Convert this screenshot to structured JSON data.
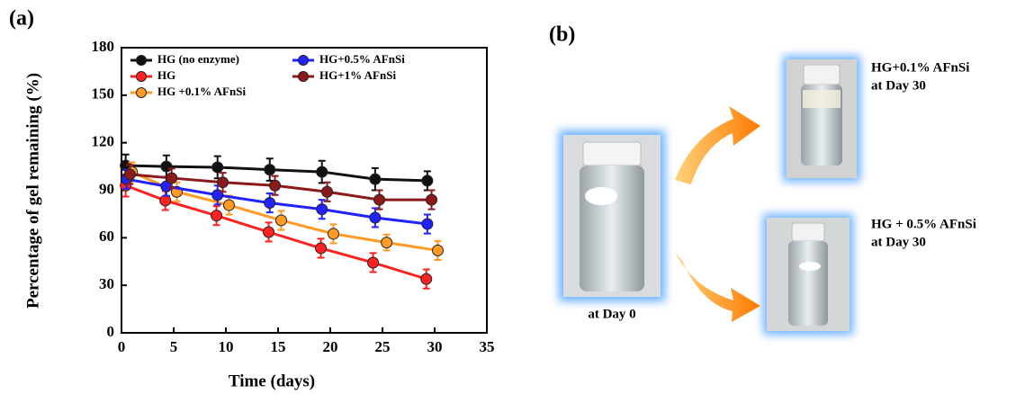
{
  "panel_a_label": "(a)",
  "chart_data": {
    "type": "line",
    "xlabel": "Time (days)",
    "ylabel": "Percentage of gel remaining (%)",
    "xlim": [
      0,
      35
    ],
    "xticks": [
      0,
      5,
      10,
      15,
      20,
      25,
      30,
      35
    ],
    "ylim": [
      0,
      180
    ],
    "yticks": [
      0,
      30,
      60,
      90,
      120,
      150,
      180
    ],
    "series": [
      {
        "name": "HG (no enzyme)",
        "color": "#111111",
        "x": [
          0.4,
          4.3,
          9.2,
          14.2,
          19.2,
          24.3,
          29.3
        ],
        "values": [
          105.6,
          105,
          104.5,
          103,
          101.6,
          97,
          96
        ],
        "errors": [
          7,
          7,
          7,
          7,
          7,
          7,
          6
        ]
      },
      {
        "name": "HG",
        "color": "#ff2222",
        "x": [
          0.4,
          4.2,
          9.1,
          14.1,
          19.1,
          24.1,
          29.2
        ],
        "values": [
          93,
          83.5,
          74,
          63.6,
          53.4,
          44.3,
          34
        ],
        "errors": [
          7,
          6,
          6,
          6,
          6,
          6,
          6
        ]
      },
      {
        "name": "HG +0.1% AFnSi",
        "color": "#ff9a22",
        "x": [
          1,
          5.3,
          10.3,
          15.3,
          20.3,
          25.4,
          30.3
        ],
        "values": [
          101.6,
          89,
          80.6,
          71,
          62.5,
          57,
          52
        ],
        "errors": [
          6,
          6,
          6,
          6,
          6,
          5,
          6
        ]
      },
      {
        "name": "HG+0.5% AFnSi",
        "color": "#2222ff",
        "x": [
          0.5,
          4.3,
          9.2,
          14.2,
          19.2,
          24.3,
          29.3
        ],
        "values": [
          97,
          92.5,
          87,
          82,
          78,
          72.7,
          68.7
        ],
        "errors": [
          6,
          6,
          6,
          6,
          6,
          6,
          6
        ]
      },
      {
        "name": "HG+1% AFnSi",
        "color": "#8b1a1a",
        "x": [
          0.8,
          4.8,
          9.7,
          14.7,
          19.7,
          24.7,
          29.7
        ],
        "values": [
          100,
          97.7,
          95,
          93,
          89,
          84,
          84
        ],
        "errors": [
          6,
          6,
          6,
          6,
          6,
          6,
          6
        ]
      }
    ]
  },
  "panel_b": {
    "label": "(b)",
    "captions": [
      "at Day 0",
      "HG+0.1% AFnSi",
      "at Day 30",
      "HG + 0.5% AFnSi",
      "at Day 30"
    ]
  }
}
